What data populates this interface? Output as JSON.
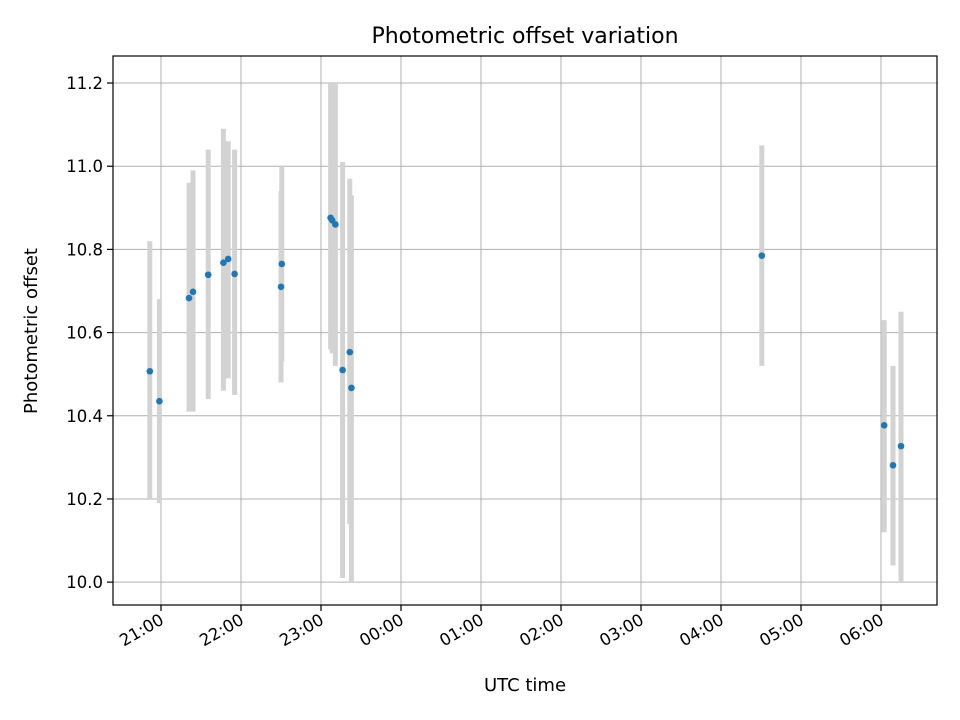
{
  "chart_data": {
    "type": "scatter",
    "title": "Photometric offset variation",
    "xlabel": "UTC time",
    "ylabel": "Photometric offset",
    "x_unit": "hours since 21:00 UTC (ticks labelled as clock time)",
    "xlim": [
      -0.6,
      9.7
    ],
    "ylim": [
      9.945,
      11.265
    ],
    "grid": true,
    "x_ticks": [
      {
        "x": 0,
        "label": "21:00"
      },
      {
        "x": 1,
        "label": "22:00"
      },
      {
        "x": 2,
        "label": "23:00"
      },
      {
        "x": 3,
        "label": "00:00"
      },
      {
        "x": 4,
        "label": "01:00"
      },
      {
        "x": 5,
        "label": "02:00"
      },
      {
        "x": 6,
        "label": "03:00"
      },
      {
        "x": 7,
        "label": "04:00"
      },
      {
        "x": 8,
        "label": "05:00"
      },
      {
        "x": 9,
        "label": "06:00"
      }
    ],
    "y_ticks": [
      {
        "y": 10.0,
        "label": "10.0"
      },
      {
        "y": 10.2,
        "label": "10.2"
      },
      {
        "y": 10.4,
        "label": "10.4"
      },
      {
        "y": 10.6,
        "label": "10.6"
      },
      {
        "y": 10.8,
        "label": "10.8"
      },
      {
        "y": 11.0,
        "label": "11.0"
      },
      {
        "y": 11.2,
        "label": "11.2"
      }
    ],
    "colors": {
      "point": "#1f77b4",
      "errorbar": "#d3d3d3"
    },
    "series": [
      {
        "points": [
          {
            "time": "20:50",
            "x": -0.14,
            "y": 10.507,
            "ylo": 10.2,
            "yhi": 10.82
          },
          {
            "time": "20:58",
            "x": -0.02,
            "y": 10.435,
            "ylo": 10.19,
            "yhi": 10.68
          },
          {
            "time": "21:21",
            "x": 0.35,
            "y": 10.683,
            "ylo": 10.41,
            "yhi": 10.96
          },
          {
            "time": "21:24",
            "x": 0.4,
            "y": 10.698,
            "ylo": 10.41,
            "yhi": 10.99
          },
          {
            "time": "21:36",
            "x": 0.59,
            "y": 10.739,
            "ylo": 10.44,
            "yhi": 11.04
          },
          {
            "time": "21:47",
            "x": 0.78,
            "y": 10.768,
            "ylo": 10.46,
            "yhi": 11.09
          },
          {
            "time": "21:51",
            "x": 0.84,
            "y": 10.777,
            "ylo": 10.49,
            "yhi": 11.06
          },
          {
            "time": "21:56",
            "x": 0.92,
            "y": 10.741,
            "ylo": 10.45,
            "yhi": 11.04
          },
          {
            "time": "22:30",
            "x": 1.5,
            "y": 10.71,
            "ylo": 10.48,
            "yhi": 10.94
          },
          {
            "time": "22:31",
            "x": 1.51,
            "y": 10.765,
            "ylo": 10.53,
            "yhi": 11.0
          },
          {
            "time": "23:07",
            "x": 2.12,
            "y": 10.876,
            "ylo": 10.56,
            "yhi": 11.2
          },
          {
            "time": "23:08",
            "x": 2.14,
            "y": 10.87,
            "ylo": 10.55,
            "yhi": 11.2
          },
          {
            "time": "23:11",
            "x": 2.18,
            "y": 10.86,
            "ylo": 10.52,
            "yhi": 11.2
          },
          {
            "time": "23:17",
            "x": 2.27,
            "y": 10.51,
            "ylo": 10.01,
            "yhi": 11.01
          },
          {
            "time": "23:22",
            "x": 2.36,
            "y": 10.553,
            "ylo": 10.14,
            "yhi": 10.97
          },
          {
            "time": "23:23",
            "x": 2.38,
            "y": 10.467,
            "ylo": 10.0,
            "yhi": 10.93
          },
          {
            "time": "04:31",
            "x": 7.51,
            "y": 10.785,
            "ylo": 10.52,
            "yhi": 11.05
          },
          {
            "time": "06:03",
            "x": 9.04,
            "y": 10.377,
            "ylo": 10.12,
            "yhi": 10.63
          },
          {
            "time": "06:09",
            "x": 9.15,
            "y": 10.281,
            "ylo": 10.04,
            "yhi": 10.52
          },
          {
            "time": "06:15",
            "x": 9.25,
            "y": 10.327,
            "ylo": 10.0,
            "yhi": 10.65
          }
        ]
      }
    ]
  }
}
